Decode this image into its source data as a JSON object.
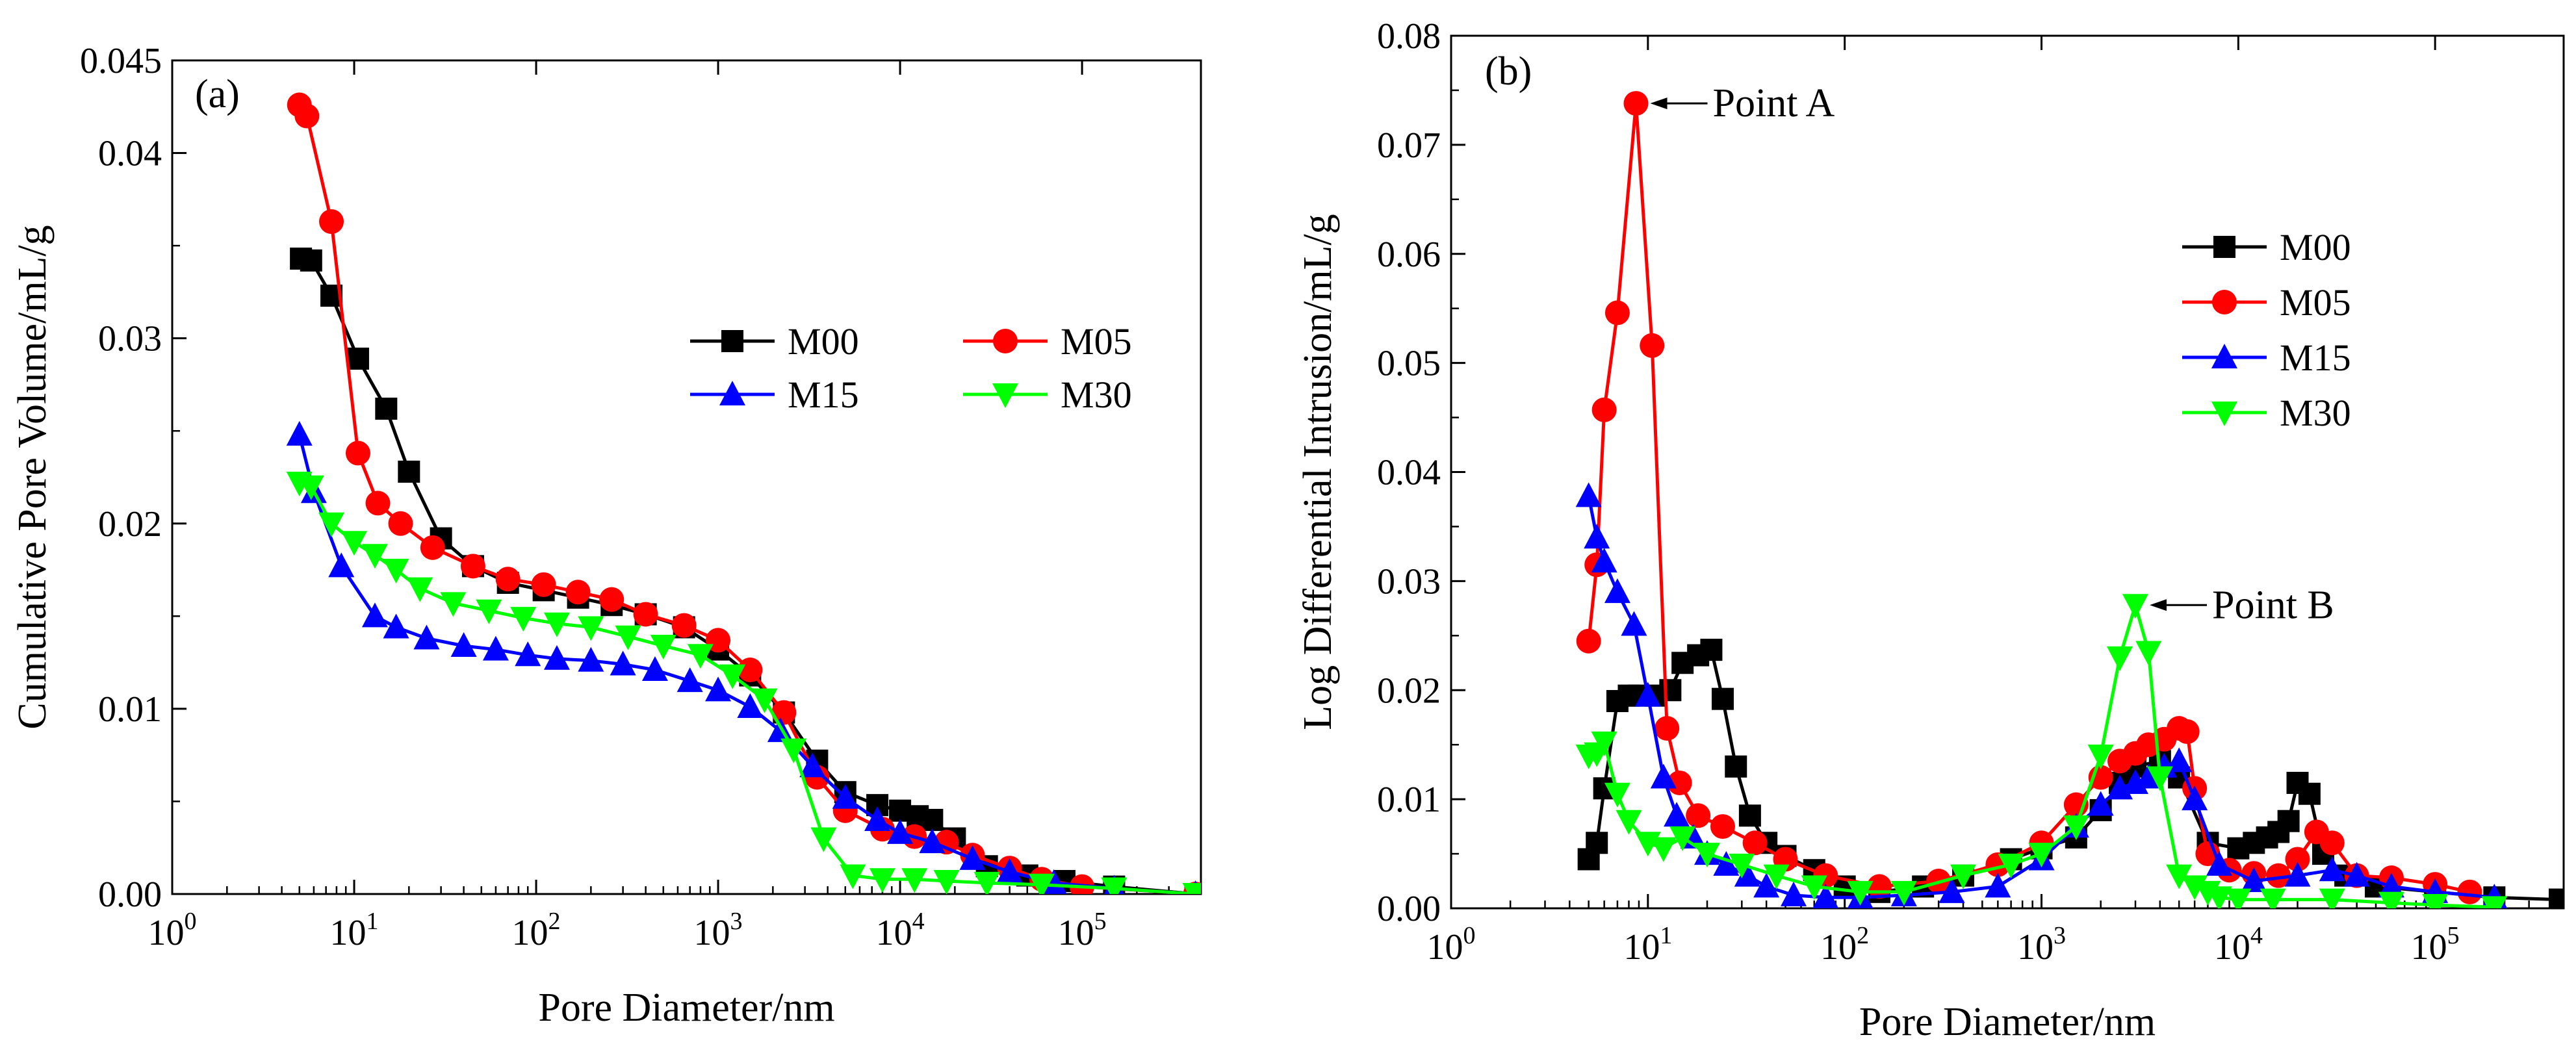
{
  "figure": {
    "description_free": true
  },
  "chart_data": [
    {
      "type": "line",
      "panel_label": "(a)",
      "xlabel": "Pore Diameter/nm",
      "ylabel": "Cumulative Pore Volume/mL/g",
      "xscale": "log",
      "xlim": [
        1,
        450000
      ],
      "ylim": [
        0,
        0.045
      ],
      "x_ticks": [
        1,
        10,
        100,
        1000,
        10000,
        100000
      ],
      "x_tick_labels": [
        {
          "base": "10",
          "exp": "0"
        },
        {
          "base": "10",
          "exp": "1"
        },
        {
          "base": "10",
          "exp": "2"
        },
        {
          "base": "10",
          "exp": "3"
        },
        {
          "base": "10",
          "exp": "4"
        },
        {
          "base": "10",
          "exp": "5"
        }
      ],
      "y_ticks": [
        0,
        0.01,
        0.02,
        0.03,
        0.04,
        0.045
      ],
      "y_tick_labels": [
        "0.00",
        "0.01",
        "0.02",
        "0.03",
        "0.04",
        "0.045"
      ],
      "legend": {
        "placement": "center-right",
        "columns": 2
      },
      "series": [
        {
          "name": "M00",
          "color": "#000000",
          "marker": "square",
          "x": [
            5.1,
            5.8,
            7.5,
            10.5,
            15,
            20,
            30,
            45,
            70,
            110,
            170,
            260,
            400,
            650,
            1000,
            1500,
            2300,
            3500,
            5000,
            7500,
            10000,
            12500,
            15000,
            20000,
            30000,
            50000,
            80000,
            150000,
            420000
          ],
          "y": [
            0.0343,
            0.0342,
            0.0323,
            0.0289,
            0.0262,
            0.0228,
            0.0192,
            0.0177,
            0.0168,
            0.0164,
            0.016,
            0.0156,
            0.0151,
            0.0144,
            0.0132,
            0.0118,
            0.0098,
            0.0072,
            0.0055,
            0.0048,
            0.0045,
            0.0042,
            0.004,
            0.003,
            0.0015,
            0.001,
            0.0007,
            0.0004,
            0.0
          ]
        },
        {
          "name": "M05",
          "color": "#ff0000",
          "marker": "circle",
          "x": [
            5,
            5.5,
            7.5,
            10.5,
            13.5,
            18,
            27,
            45,
            70,
            110,
            170,
            260,
            400,
            650,
            1000,
            1500,
            2300,
            3500,
            5000,
            8000,
            12000,
            18000,
            25000,
            40000,
            60000,
            100000,
            420000
          ],
          "y": [
            0.0426,
            0.042,
            0.0363,
            0.0238,
            0.0211,
            0.02,
            0.0187,
            0.0177,
            0.017,
            0.0167,
            0.0163,
            0.0159,
            0.0151,
            0.0145,
            0.0137,
            0.0121,
            0.0098,
            0.0063,
            0.0045,
            0.0035,
            0.0031,
            0.0028,
            0.0021,
            0.0014,
            0.0008,
            0.0004,
            0.0
          ]
        },
        {
          "name": "M15",
          "color": "#0000ff",
          "marker": "triangle-up",
          "x": [
            5,
            6,
            8.5,
            13,
            17,
            25,
            40,
            60,
            90,
            130,
            200,
            300,
            450,
            700,
            1000,
            1500,
            2200,
            3300,
            5000,
            7500,
            10000,
            15000,
            25000,
            40000,
            70000,
            150000,
            420000
          ],
          "y": [
            0.0248,
            0.0217,
            0.0177,
            0.015,
            0.0144,
            0.0138,
            0.0134,
            0.0132,
            0.0129,
            0.0127,
            0.0126,
            0.0124,
            0.0121,
            0.0115,
            0.011,
            0.0101,
            0.0088,
            0.0069,
            0.0052,
            0.004,
            0.0033,
            0.0028,
            0.0019,
            0.0012,
            0.0006,
            0.0003,
            0.0
          ]
        },
        {
          "name": "M30",
          "color": "#00ff00",
          "marker": "triangle-down",
          "x": [
            5,
            5.8,
            7.5,
            10,
            13,
            17,
            23,
            35,
            55,
            85,
            130,
            200,
            320,
            500,
            800,
            1200,
            1800,
            2600,
            3800,
            5500,
            8000,
            12000,
            18000,
            30000,
            60000,
            150000,
            420000
          ],
          "y": [
            0.0222,
            0.022,
            0.02,
            0.019,
            0.0183,
            0.0175,
            0.0165,
            0.0157,
            0.0153,
            0.0149,
            0.0146,
            0.0144,
            0.0139,
            0.0134,
            0.0129,
            0.0118,
            0.0105,
            0.0078,
            0.003,
            0.001,
            0.0008,
            0.0008,
            0.0007,
            0.0006,
            0.0005,
            0.0003,
            0.0
          ]
        }
      ]
    },
    {
      "type": "line",
      "panel_label": "(b)",
      "xlabel": "Pore Diameter/nm",
      "ylabel": "Log Differential Intrusion/mL/g",
      "xscale": "log",
      "xlim": [
        1,
        450000
      ],
      "ylim": [
        0,
        0.08
      ],
      "x_ticks": [
        1,
        10,
        100,
        1000,
        10000,
        100000
      ],
      "x_tick_labels": [
        {
          "base": "10",
          "exp": "0"
        },
        {
          "base": "10",
          "exp": "1"
        },
        {
          "base": "10",
          "exp": "2"
        },
        {
          "base": "10",
          "exp": "3"
        },
        {
          "base": "10",
          "exp": "4"
        },
        {
          "base": "10",
          "exp": "5"
        }
      ],
      "y_ticks": [
        0,
        0.01,
        0.02,
        0.03,
        0.04,
        0.05,
        0.06,
        0.07,
        0.08
      ],
      "y_tick_labels": [
        "0.00",
        "0.01",
        "0.02",
        "0.03",
        "0.04",
        "0.05",
        "0.06",
        "0.07",
        "0.08"
      ],
      "legend": {
        "placement": "upper-right",
        "columns": 1
      },
      "annotations": [
        {
          "text": "Point A",
          "x": 8.7,
          "y": 0.0738
        },
        {
          "text": "Point B",
          "x": 3000,
          "y": 0.0278
        }
      ],
      "series": [
        {
          "name": "M00",
          "color": "#000000",
          "marker": "square",
          "x": [
            5,
            5.5,
            6,
            7,
            8,
            9,
            11,
            13,
            15,
            18,
            21,
            24,
            28,
            33,
            40,
            50,
            70,
            100,
            150,
            250,
            400,
            700,
            1000,
            1500,
            2000,
            2500,
            3000,
            4000,
            5000,
            7000,
            10000,
            12000,
            14000,
            16000,
            18000,
            20000,
            23000,
            27000,
            35000,
            50000,
            100000,
            200000,
            430000
          ],
          "y": [
            0.0045,
            0.006,
            0.011,
            0.019,
            0.0195,
            0.0195,
            0.0195,
            0.02,
            0.0225,
            0.0232,
            0.0237,
            0.0192,
            0.013,
            0.0085,
            0.006,
            0.0048,
            0.0035,
            0.002,
            0.0015,
            0.002,
            0.003,
            0.0045,
            0.0055,
            0.0065,
            0.009,
            0.0115,
            0.013,
            0.0135,
            0.012,
            0.006,
            0.0055,
            0.006,
            0.0065,
            0.007,
            0.008,
            0.0115,
            0.0105,
            0.005,
            0.003,
            0.002,
            0.0015,
            0.001,
            0.0008
          ]
        },
        {
          "name": "M05",
          "color": "#ff0000",
          "marker": "circle",
          "x": [
            5,
            5.5,
            6,
            7,
            8.7,
            10.5,
            12.5,
            14.5,
            18,
            24,
            35,
            50,
            80,
            150,
            300,
            600,
            1000,
            1500,
            2000,
            2500,
            3000,
            3500,
            4200,
            5000,
            5500,
            6000,
            7000,
            9000,
            12000,
            16000,
            20000,
            25000,
            30000,
            40000,
            60000,
            100000,
            150000
          ],
          "y": [
            0.0245,
            0.0315,
            0.0457,
            0.0546,
            0.0738,
            0.0516,
            0.0165,
            0.0115,
            0.0085,
            0.0075,
            0.006,
            0.0045,
            0.003,
            0.002,
            0.0025,
            0.004,
            0.006,
            0.0095,
            0.012,
            0.0135,
            0.0142,
            0.015,
            0.0155,
            0.0165,
            0.0162,
            0.011,
            0.005,
            0.0035,
            0.0032,
            0.003,
            0.0045,
            0.007,
            0.006,
            0.003,
            0.0028,
            0.0022,
            0.0015
          ]
        },
        {
          "name": "M15",
          "color": "#0000ff",
          "marker": "triangle-up",
          "x": [
            5,
            5.5,
            6,
            7,
            8.5,
            10,
            12,
            14,
            17,
            20,
            25,
            32,
            40,
            55,
            80,
            120,
            200,
            350,
            600,
            1000,
            1500,
            2000,
            2500,
            3000,
            3500,
            4200,
            5000,
            6000,
            8000,
            12000,
            20000,
            30000,
            40000,
            60000,
            100000,
            200000
          ],
          "y": [
            0.0378,
            0.034,
            0.0318,
            0.029,
            0.026,
            0.0195,
            0.012,
            0.0085,
            0.0065,
            0.005,
            0.004,
            0.003,
            0.002,
            0.0012,
            0.001,
            0.001,
            0.0012,
            0.0015,
            0.002,
            0.0045,
            0.0075,
            0.0095,
            0.011,
            0.0115,
            0.012,
            0.013,
            0.0135,
            0.01,
            0.004,
            0.0025,
            0.003,
            0.0035,
            0.003,
            0.002,
            0.0015,
            0.001
          ]
        },
        {
          "name": "M30",
          "color": "#00ff00",
          "marker": "triangle-down",
          "x": [
            5,
            5.5,
            6,
            7,
            8,
            10,
            12,
            15,
            20,
            30,
            45,
            70,
            120,
            200,
            400,
            700,
            1000,
            1500,
            2000,
            2500,
            3000,
            3500,
            4000,
            5000,
            6000,
            7000,
            8000,
            10000,
            15000,
            30000,
            60000,
            100000,
            200000
          ],
          "y": [
            0.014,
            0.0142,
            0.0152,
            0.0105,
            0.008,
            0.006,
            0.0055,
            0.0065,
            0.005,
            0.004,
            0.003,
            0.002,
            0.0015,
            0.0015,
            0.003,
            0.004,
            0.005,
            0.0075,
            0.014,
            0.023,
            0.0278,
            0.0235,
            0.012,
            0.003,
            0.002,
            0.0015,
            0.001,
            0.0008,
            0.0008,
            0.0008,
            0.0005,
            0.0003,
            0.0001
          ]
        }
      ]
    }
  ]
}
